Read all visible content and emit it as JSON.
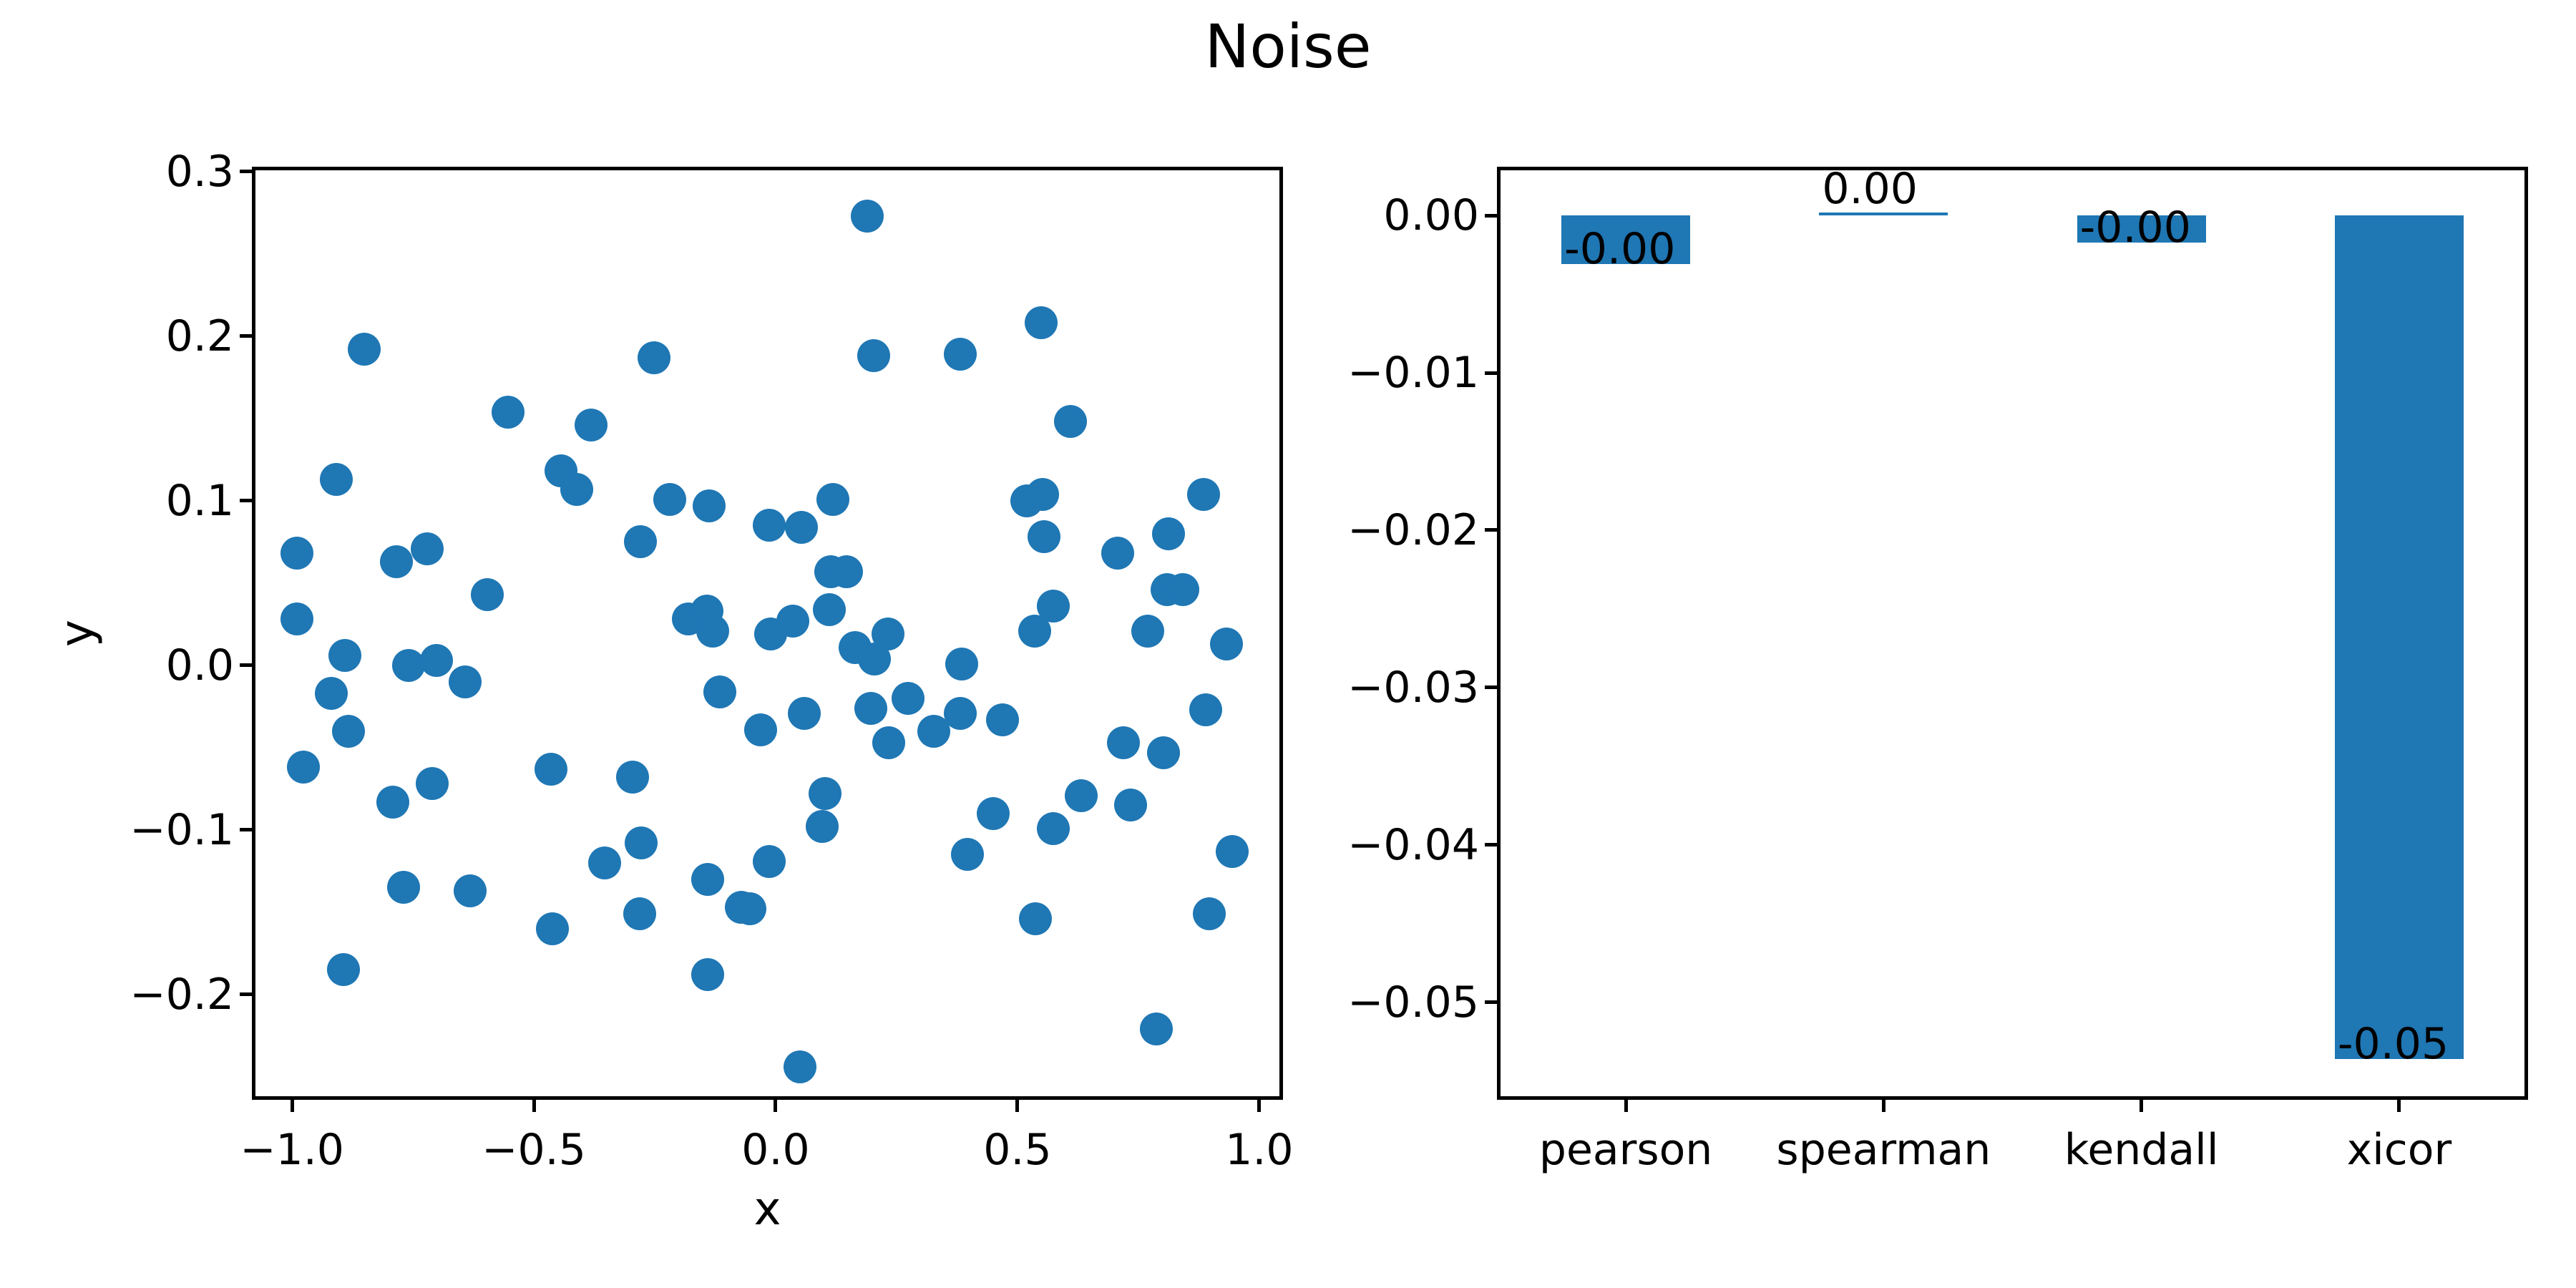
{
  "title": "Noise",
  "colors": {
    "accent": "#1f77b4",
    "axis": "#000000",
    "background": "#ffffff"
  },
  "chart_data": [
    {
      "type": "scatter",
      "xlabel": "x",
      "ylabel": "y",
      "xlim": [
        -1.083,
        1.049
      ],
      "ylim": [
        -0.264,
        0.303
      ],
      "x_tick_labels": [
        "−1.0",
        "−0.5",
        "0.0",
        "0.5",
        "1.0"
      ],
      "x_tick_values": [
        -1.0,
        -0.5,
        0.0,
        0.5,
        1.0
      ],
      "y_tick_labels": [
        "0.3",
        "0.2",
        "0.1",
        "0.0",
        "−0.1",
        "−0.2"
      ],
      "y_tick_values": [
        0.3,
        0.2,
        0.1,
        0.0,
        -0.1,
        -0.2
      ],
      "grid": false,
      "legend": "none",
      "marker_color": "#1f77b4",
      "points": [
        [
          -0.85,
          0.192
        ],
        [
          -0.553,
          0.154
        ],
        [
          -0.381,
          0.146
        ],
        [
          -0.444,
          0.118
        ],
        [
          -0.411,
          0.107
        ],
        [
          -0.908,
          0.113
        ],
        [
          -0.99,
          0.068
        ],
        [
          -0.784,
          0.063
        ],
        [
          -0.72,
          0.071
        ],
        [
          -0.596,
          0.043
        ],
        [
          -0.99,
          0.028
        ],
        [
          0.19,
          0.273
        ],
        [
          -0.251,
          0.187
        ],
        [
          0.203,
          0.188
        ],
        [
          -0.219,
          0.101
        ],
        [
          -0.138,
          0.097
        ],
        [
          -0.013,
          0.085
        ],
        [
          0.053,
          0.084
        ],
        [
          0.118,
          0.101
        ],
        [
          -0.28,
          0.075
        ],
        [
          0.114,
          0.057
        ],
        [
          0.146,
          0.057
        ],
        [
          0.111,
          0.034
        ],
        [
          -0.18,
          0.028
        ],
        [
          -0.142,
          0.033
        ],
        [
          0.036,
          0.027
        ],
        [
          -0.13,
          0.021
        ],
        [
          -0.01,
          0.019
        ],
        [
          0.232,
          0.019
        ],
        [
          -0.89,
          0.006
        ],
        [
          -0.759,
          0.0
        ],
        [
          -0.702,
          0.003
        ],
        [
          -0.642,
          -0.01
        ],
        [
          -0.919,
          -0.017
        ],
        [
          -0.883,
          -0.04
        ],
        [
          -0.976,
          -0.062
        ],
        [
          -0.71,
          -0.072
        ],
        [
          -0.791,
          -0.083
        ],
        [
          -0.465,
          -0.063
        ],
        [
          -0.77,
          -0.135
        ],
        [
          -0.632,
          -0.137
        ],
        [
          -0.462,
          -0.16
        ],
        [
          -0.354,
          -0.12
        ],
        [
          -0.894,
          -0.185
        ],
        [
          0.549,
          0.208
        ],
        [
          0.381,
          0.189
        ],
        [
          0.61,
          0.148
        ],
        [
          0.552,
          0.104
        ],
        [
          0.519,
          0.1
        ],
        [
          0.555,
          0.078
        ],
        [
          0.707,
          0.068
        ],
        [
          0.812,
          0.08
        ],
        [
          0.885,
          0.104
        ],
        [
          0.809,
          0.046
        ],
        [
          0.842,
          0.046
        ],
        [
          0.574,
          0.036
        ],
        [
          0.164,
          0.011
        ],
        [
          0.204,
          0.004
        ],
        [
          -0.296,
          -0.068
        ],
        [
          -0.278,
          -0.108
        ],
        [
          -0.281,
          -0.151
        ],
        [
          -0.141,
          -0.13
        ],
        [
          -0.141,
          -0.188
        ],
        [
          -0.071,
          -0.147
        ],
        [
          -0.053,
          -0.148
        ],
        [
          -0.013,
          -0.119
        ],
        [
          0.05,
          -0.244
        ],
        [
          0.102,
          -0.078
        ],
        [
          0.096,
          -0.098
        ],
        [
          -0.115,
          -0.016
        ],
        [
          -0.031,
          -0.039
        ],
        [
          0.059,
          -0.029
        ],
        [
          0.197,
          -0.026
        ],
        [
          0.234,
          -0.047
        ],
        [
          0.274,
          -0.02
        ],
        [
          0.535,
          0.021
        ],
        [
          0.769,
          0.021
        ],
        [
          0.932,
          0.013
        ],
        [
          0.385,
          0.001
        ],
        [
          0.327,
          -0.04
        ],
        [
          0.382,
          -0.029
        ],
        [
          0.469,
          -0.033
        ],
        [
          0.889,
          -0.027
        ],
        [
          0.719,
          -0.047
        ],
        [
          0.802,
          -0.053
        ],
        [
          0.632,
          -0.079
        ],
        [
          0.734,
          -0.085
        ],
        [
          0.45,
          -0.09
        ],
        [
          0.574,
          -0.099
        ],
        [
          0.396,
          -0.115
        ],
        [
          0.944,
          -0.113
        ],
        [
          0.896,
          -0.151
        ],
        [
          0.537,
          -0.154
        ],
        [
          0.787,
          -0.221
        ]
      ]
    },
    {
      "type": "bar",
      "categories": [
        "pearson",
        "spearman",
        "kendall",
        "xicor"
      ],
      "values": [
        -0.0031,
        0.0002,
        -0.0017,
        -0.0536
      ],
      "bar_labels": [
        "-0.00",
        "0.00",
        "-0.00",
        "-0.05"
      ],
      "ylim": [
        -0.0562,
        0.0031
      ],
      "y_tick_labels": [
        "0.00",
        "−0.01",
        "−0.02",
        "−0.03",
        "−0.04",
        "−0.05"
      ],
      "y_tick_values": [
        0.0,
        -0.01,
        -0.02,
        -0.03,
        -0.04,
        -0.05
      ],
      "grid": false,
      "legend": "none",
      "bar_color": "#1f77b4"
    }
  ]
}
